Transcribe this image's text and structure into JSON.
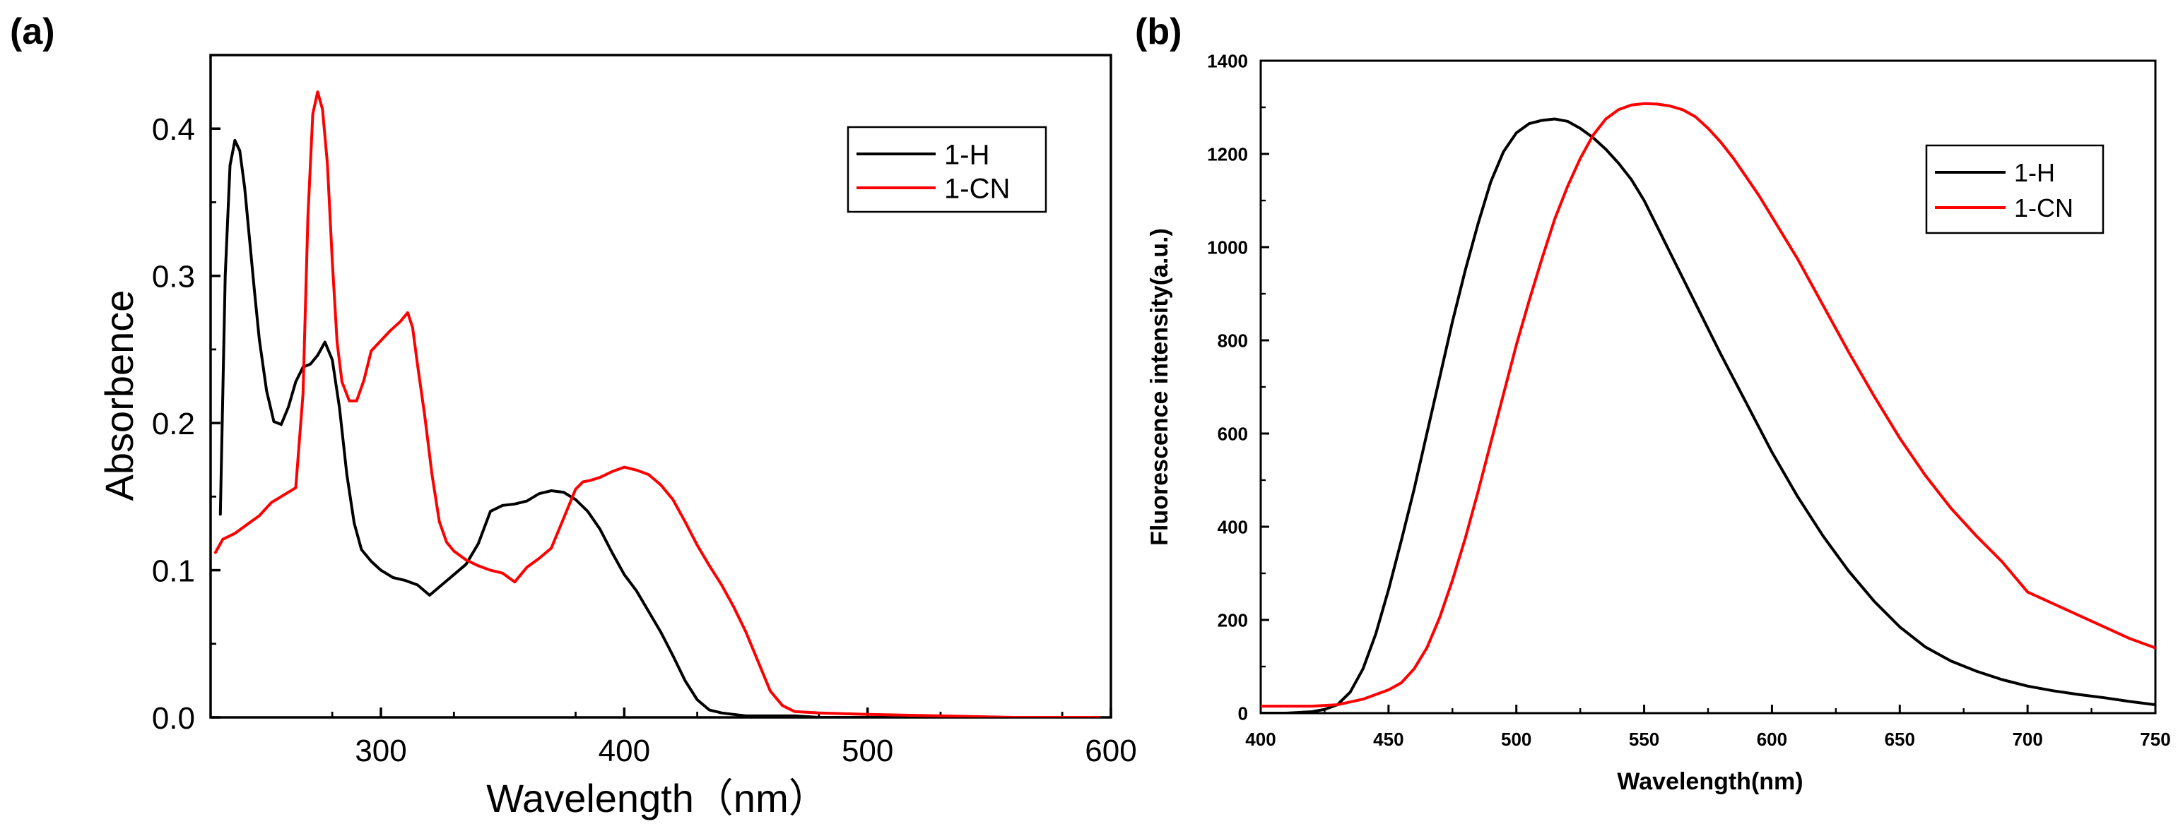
{
  "chart_data": [
    {
      "panel_label": "(a)",
      "type": "line",
      "title": "",
      "xlabel": "Wavelength（nm）",
      "ylabel": "Absorbence",
      "xlim": [
        230,
        600
      ],
      "ylim": [
        0.0,
        0.45
      ],
      "xticks": [
        300,
        400,
        500,
        600
      ],
      "xtick_labels": [
        "300",
        "400",
        "500",
        "600"
      ],
      "yticks": [
        0.0,
        0.1,
        0.2,
        0.3,
        0.4
      ],
      "ytick_labels": [
        "0.0",
        "0.1",
        "0.2",
        "0.3",
        "0.4"
      ],
      "legend": {
        "position": "top-right",
        "entries": [
          "1-H",
          "1-CN"
        ]
      },
      "series": [
        {
          "name": "1-H",
          "color": "#000000",
          "x": [
            234,
            236,
            238,
            240,
            242,
            244,
            246,
            248,
            250,
            253,
            256,
            259,
            262,
            265,
            268,
            271,
            274,
            277,
            280,
            283,
            286,
            289,
            292,
            296,
            300,
            305,
            310,
            315,
            320,
            325,
            330,
            335,
            340,
            345,
            350,
            355,
            360,
            365,
            370,
            375,
            380,
            385,
            390,
            395,
            400,
            405,
            410,
            415,
            420,
            425,
            430,
            435,
            440,
            445,
            450,
            460,
            470,
            480,
            500,
            530,
            560,
            595
          ],
          "y": [
            0.138,
            0.3,
            0.375,
            0.392,
            0.385,
            0.36,
            0.325,
            0.29,
            0.257,
            0.222,
            0.201,
            0.199,
            0.211,
            0.228,
            0.238,
            0.24,
            0.246,
            0.255,
            0.243,
            0.21,
            0.165,
            0.132,
            0.114,
            0.106,
            0.1,
            0.095,
            0.093,
            0.09,
            0.083,
            0.09,
            0.097,
            0.104,
            0.118,
            0.14,
            0.144,
            0.145,
            0.147,
            0.152,
            0.154,
            0.153,
            0.148,
            0.14,
            0.128,
            0.112,
            0.097,
            0.086,
            0.072,
            0.058,
            0.042,
            0.025,
            0.012,
            0.005,
            0.003,
            0.002,
            0.001,
            0.001,
            0.001,
            0.0,
            0.0,
            0.0,
            0.0,
            0.0
          ]
        },
        {
          "name": "1-CN",
          "color": "#ff0000",
          "x": [
            232,
            235,
            240,
            245,
            250,
            255,
            260,
            265,
            268,
            270,
            272,
            274,
            276,
            278,
            280,
            282,
            284,
            287,
            290,
            293,
            296,
            300,
            304,
            308,
            311,
            313,
            315,
            318,
            321,
            324,
            327,
            330,
            335,
            340,
            345,
            350,
            355,
            360,
            365,
            370,
            375,
            380,
            383,
            386,
            390,
            395,
            400,
            405,
            410,
            415,
            420,
            425,
            430,
            435,
            440,
            445,
            450,
            455,
            460,
            465,
            470,
            480,
            500,
            530,
            560,
            595
          ],
          "y": [
            0.112,
            0.121,
            0.125,
            0.131,
            0.137,
            0.146,
            0.151,
            0.156,
            0.22,
            0.34,
            0.41,
            0.425,
            0.413,
            0.376,
            0.31,
            0.255,
            0.228,
            0.215,
            0.215,
            0.229,
            0.249,
            0.256,
            0.263,
            0.269,
            0.275,
            0.265,
            0.24,
            0.205,
            0.165,
            0.133,
            0.119,
            0.113,
            0.107,
            0.103,
            0.1,
            0.098,
            0.092,
            0.102,
            0.108,
            0.115,
            0.135,
            0.155,
            0.16,
            0.161,
            0.163,
            0.167,
            0.17,
            0.168,
            0.165,
            0.158,
            0.148,
            0.133,
            0.117,
            0.103,
            0.09,
            0.075,
            0.058,
            0.038,
            0.018,
            0.008,
            0.004,
            0.003,
            0.002,
            0.001,
            0.0,
            0.0
          ]
        }
      ]
    },
    {
      "panel_label": "(b)",
      "type": "line",
      "title": "",
      "xlabel": "Wavelength(nm)",
      "ylabel": "Fluorescence intensity(a.u.)",
      "xlim": [
        400,
        750
      ],
      "ylim": [
        0,
        1400
      ],
      "xticks": [
        400,
        450,
        500,
        550,
        600,
        650,
        700,
        750
      ],
      "xtick_labels": [
        "400",
        "450",
        "500",
        "550",
        "600",
        "650",
        "700",
        "750"
      ],
      "yticks": [
        0,
        200,
        400,
        600,
        800,
        1000,
        1200,
        1400
      ],
      "ytick_labels": [
        "0",
        "200",
        "400",
        "600",
        "800",
        "1000",
        "1200",
        "1400"
      ],
      "legend": {
        "position": "top-right",
        "entries": [
          "1-H",
          "1-CN"
        ]
      },
      "series": [
        {
          "name": "1-H",
          "color": "#000000",
          "x": [
            400,
            410,
            420,
            425,
            430,
            435,
            440,
            445,
            450,
            455,
            460,
            465,
            470,
            475,
            480,
            485,
            490,
            495,
            500,
            505,
            510,
            515,
            520,
            525,
            530,
            535,
            540,
            545,
            550,
            555,
            560,
            570,
            580,
            590,
            600,
            610,
            620,
            630,
            640,
            650,
            660,
            670,
            680,
            690,
            700,
            710,
            720,
            730,
            740,
            750
          ],
          "y": [
            0,
            0,
            3,
            8,
            18,
            45,
            95,
            170,
            265,
            370,
            480,
            600,
            720,
            840,
            950,
            1050,
            1140,
            1205,
            1245,
            1265,
            1272,
            1275,
            1270,
            1255,
            1235,
            1210,
            1180,
            1145,
            1100,
            1045,
            990,
            880,
            770,
            665,
            560,
            465,
            380,
            305,
            240,
            185,
            142,
            112,
            90,
            72,
            58,
            48,
            40,
            33,
            25,
            18
          ]
        },
        {
          "name": "1-CN",
          "color": "#ff0000",
          "x": [
            400,
            410,
            420,
            430,
            440,
            450,
            455,
            460,
            465,
            470,
            475,
            480,
            485,
            490,
            495,
            500,
            505,
            510,
            515,
            520,
            525,
            530,
            535,
            540,
            545,
            550,
            555,
            560,
            565,
            570,
            575,
            580,
            585,
            590,
            595,
            600,
            610,
            620,
            630,
            640,
            650,
            660,
            670,
            680,
            690,
            700,
            710,
            720,
            730,
            740,
            750
          ],
          "y": [
            15,
            15,
            15,
            18,
            30,
            50,
            65,
            95,
            140,
            205,
            285,
            375,
            475,
            580,
            685,
            790,
            885,
            975,
            1060,
            1130,
            1190,
            1240,
            1275,
            1295,
            1305,
            1308,
            1307,
            1303,
            1295,
            1280,
            1255,
            1225,
            1190,
            1150,
            1110,
            1065,
            975,
            875,
            775,
            680,
            590,
            510,
            440,
            380,
            325,
            260,
            235,
            210,
            185,
            160,
            140
          ]
        }
      ]
    }
  ]
}
